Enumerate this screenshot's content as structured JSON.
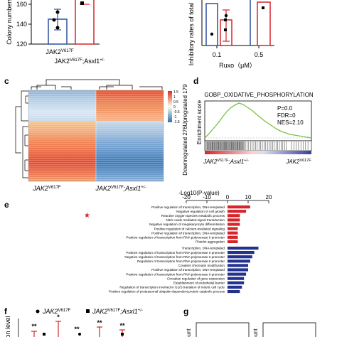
{
  "panel_labels": {
    "c": "c",
    "d": "d",
    "e": "e",
    "f": "f",
    "g": "g"
  },
  "panel_a": {
    "ylabel": "Colony numbers",
    "yticks": [
      "160",
      "140",
      "120"
    ],
    "groups": [
      "JAK2V617F",
      "JAK2V617F;Asxl1+/-"
    ],
    "group_labels": [
      {
        "base": "JAK2",
        "sup": "V617F",
        "tail": ""
      },
      {
        "base": "JAK2",
        "sup": "V617F",
        "tail": ";Asxl1",
        "tail_sup": "+/-"
      }
    ],
    "values": [
      128,
      147
    ],
    "colors": [
      "#2b4fa0",
      "#d6242a"
    ]
  },
  "panel_b": {
    "ylabel": "Inhibitory rates of total",
    "xlabel": "Ruxo（μM）",
    "doses": [
      "0.1",
      "0.5"
    ],
    "colors": [
      "#2b4fa0",
      "#d6242a"
    ]
  },
  "panel_c": {
    "upregulated_label": "Upregulated 179",
    "downregulated_label": "Downregulated 276",
    "colorbar_ticks": [
      "1.5",
      "1",
      "0.5",
      "0",
      "-0.5",
      "-1",
      "-1.5"
    ],
    "group_labels": [
      {
        "base": "JAK2",
        "sup": "V617F",
        "tail": ""
      },
      {
        "base": "JAK2",
        "sup": "V617F",
        "tail": ";Asxl1",
        "tail_sup": "+/-"
      }
    ],
    "up_count": 179,
    "down_count": 276
  },
  "panel_d": {
    "title": "GOBP_OXIDATIVE_PHOSPHORYLATION",
    "ylabel": "Enrichment score",
    "stats": [
      "P=0.0",
      "FDR=0",
      "NES=2.10"
    ],
    "left_label": {
      "base": "JAK2",
      "sup": "V617F",
      "tail": ";Asxl1",
      "tail_sup": "+/-"
    },
    "right_label": {
      "base": "JAK2",
      "sup": "V617F",
      "tail": ""
    },
    "line_color": "#7ac143"
  },
  "panel_e": {
    "xlabel": "-Log10(P-value)",
    "xticks": [
      "-20",
      "-10",
      "0",
      "10",
      "20"
    ],
    "up_color": "#d6242a",
    "down_color": "#23318f",
    "terms": [
      {
        "label": "Positive regulation of transcription, DNA-templated",
        "value": 11,
        "star": false
      },
      {
        "label": "Negative regulation of cell growth",
        "value": 9,
        "star": false
      },
      {
        "label": "Reactive oxygen species metabolic process",
        "value": 6,
        "star": true
      },
      {
        "label": "Nitric oxide mediated signal transduction",
        "value": 6,
        "star": false
      },
      {
        "label": "Negative regulation of megakaryocyte differentiation",
        "value": 6,
        "star": false
      },
      {
        "label": "Positive regulation of calcium-mediated signaling",
        "value": 5,
        "star": false
      },
      {
        "label": "Positive regulation of transcription, DNA-templated",
        "value": 5,
        "star": false
      },
      {
        "label": "Positive regulation of transcription from RNA polymerase II promoter",
        "value": 5,
        "star": false
      },
      {
        "label": "Platelet aggregation",
        "value": 5,
        "star": false
      },
      {
        "label": "Transcription, DNA-templated",
        "value": -15,
        "star": false
      },
      {
        "label": "Positive regulation of transcription from RNA polymerase II promoter",
        "value": -13,
        "star": false
      },
      {
        "label": "Negative regulation of transcription from RNA polymerase II promoter",
        "value": -12,
        "star": false
      },
      {
        "label": "Regulation of transcription from RNA polymerase II promoter",
        "value": -11,
        "star": false
      },
      {
        "label": "Covalent chromatin modification",
        "value": -10,
        "star": false
      },
      {
        "label": "Positive regulation of transcription, DNA-templated",
        "value": -10,
        "star": false
      },
      {
        "label": "Positive regulation of transcription from RNA polymerase II promoter",
        "value": -9,
        "star": false
      },
      {
        "label": "Circadian regulation of gene expression",
        "value": -8,
        "star": false
      },
      {
        "label": "Establishment of endothelial barrier",
        "value": -8,
        "star": false
      },
      {
        "label": "Regulation of transcription involved in G1/S transition of mitotic cell cycle",
        "value": -7,
        "star": false
      },
      {
        "label": "Positive regulation of proteasomal ubiquitin-dependent protein catabolic process",
        "value": -6,
        "star": false
      }
    ]
  },
  "panel_f": {
    "ylabel": "ession level",
    "legend": [
      {
        "base": "JAK2",
        "sup": "V617F",
        "tail": ""
      },
      {
        "base": "JAK2",
        "sup": "V617F",
        "tail": ";Asxl1",
        "tail_sup": "+/-"
      }
    ],
    "significance": [
      "**",
      "*",
      "**",
      "**",
      "**"
    ],
    "colors": [
      "#2b4fa0",
      "#d6242a"
    ]
  },
  "panel_g": {
    "ylabel_left": "ount",
    "ylabel_right": "ount"
  }
}
